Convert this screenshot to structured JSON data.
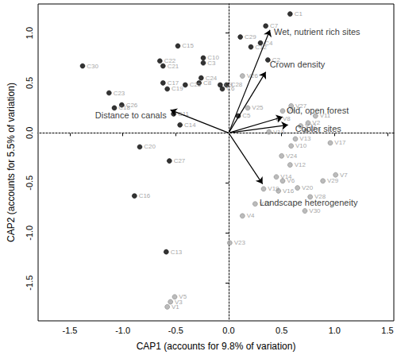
{
  "chart_data": {
    "type": "scatter",
    "xlabel": "CAP1 (accounts for 9.8% of variation)",
    "ylabel": "CAP2 (accounts for 5.5% of variation)",
    "xlim": [
      -1.8,
      1.56
    ],
    "ylim": [
      -1.88,
      1.29
    ],
    "xticks": [
      -1.5,
      {
        "value": -1,
        "label": "-1.0"
      },
      -0.5,
      {
        "value": 0,
        "label": "0.0"
      },
      0.5,
      {
        "value": 1,
        "label": "1.0"
      },
      1.5
    ],
    "yticks": [
      -1.5,
      {
        "value": -1,
        "label": "-1.0"
      },
      -0.5,
      {
        "value": 0,
        "label": "0.0"
      },
      0.5,
      {
        "value": 1,
        "label": "1.0"
      }
    ],
    "grid": false,
    "hlines": [
      0
    ],
    "vlines": [
      0
    ],
    "series": [
      {
        "color": "#000000",
        "marker": "circle",
        "point_labels": [
          "C1",
          "C7",
          "C29",
          "C4",
          "C12",
          "C2",
          "C15",
          "C10",
          "C3",
          "C30",
          "C22",
          "C21",
          "C23",
          "C18",
          "C26",
          "C17",
          "C19",
          "C25",
          "C24",
          "C8",
          "C9",
          "C28",
          "C6",
          "C5",
          "C11",
          "C14",
          "C20",
          "C27",
          "C16",
          "C13"
        ],
        "x": [
          0.58,
          0.35,
          0.11,
          0.3,
          0.21,
          0.37,
          -0.48,
          -0.24,
          -0.24,
          -1.38,
          -0.65,
          -0.62,
          -1.13,
          -1.08,
          -1.01,
          -0.62,
          -0.58,
          -0.41,
          -0.26,
          -0.28,
          -0.08,
          -0.02,
          -0.06,
          0.09,
          -0.52,
          -0.46,
          -0.84,
          -0.56,
          -0.89,
          -0.59
        ],
        "y": [
          1.19,
          1.07,
          0.96,
          0.9,
          0.86,
          0.73,
          0.87,
          0.75,
          0.7,
          0.67,
          0.72,
          0.67,
          0.4,
          0.25,
          0.28,
          0.5,
          0.44,
          0.48,
          0.55,
          0.5,
          0.48,
          0.48,
          0.44,
          0.17,
          0.19,
          0.08,
          -0.14,
          -0.28,
          -0.63,
          -1.19
        ]
      },
      {
        "color": "#aaaaaa",
        "marker": "circle",
        "point_labels": [
          "V26",
          "V25",
          "V27",
          "V9",
          "V11",
          "V8",
          "V2",
          "V21",
          "V22",
          "V18",
          "V17",
          "V13",
          "V10",
          "V24",
          "V12",
          "V14",
          "V6",
          "V19",
          "V16",
          "V20",
          "V29",
          "V7",
          "V28",
          "V15",
          "V4",
          "V30",
          "V23",
          "V5",
          "V3",
          "V1"
        ],
        "x": [
          0.13,
          0.18,
          0.59,
          0.51,
          0.82,
          0.47,
          0.75,
          0.73,
          0.68,
          0.38,
          0.96,
          0.63,
          0.59,
          0.5,
          0.58,
          0.45,
          0.51,
          0.33,
          0.47,
          0.65,
          0.89,
          1.01,
          0.77,
          0.25,
          0.13,
          0.72,
          0.01,
          -0.51,
          -0.55,
          -0.58
        ],
        "y": [
          0.57,
          0.25,
          0.27,
          0.22,
          0.17,
          0.14,
          0.1,
          0.02,
          0.07,
          0.01,
          -0.1,
          -0.06,
          -0.13,
          -0.23,
          -0.32,
          -0.44,
          -0.48,
          -0.56,
          -0.58,
          -0.55,
          -0.48,
          -0.42,
          -0.64,
          -0.71,
          -0.83,
          -0.78,
          -1.1,
          -1.64,
          -1.69,
          -1.74
        ]
      }
    ],
    "vector_origin": [
      0,
      0
    ],
    "vectors": [
      {
        "label": "Wet, nutrient rich sites",
        "x": 0.39,
        "y": 1.03
      },
      {
        "label": "Crown density",
        "x": 0.35,
        "y": 0.61
      },
      {
        "label": "Old, open forest",
        "x": 0.51,
        "y": 0.16
      },
      {
        "label": "Cooler sites",
        "x": 0.56,
        "y": 0.08
      },
      {
        "label": "Landscape heterogeneity",
        "x": 0.32,
        "y": -0.51
      },
      {
        "label": "Distance to canals",
        "x": -0.55,
        "y": 0.23
      }
    ]
  }
}
